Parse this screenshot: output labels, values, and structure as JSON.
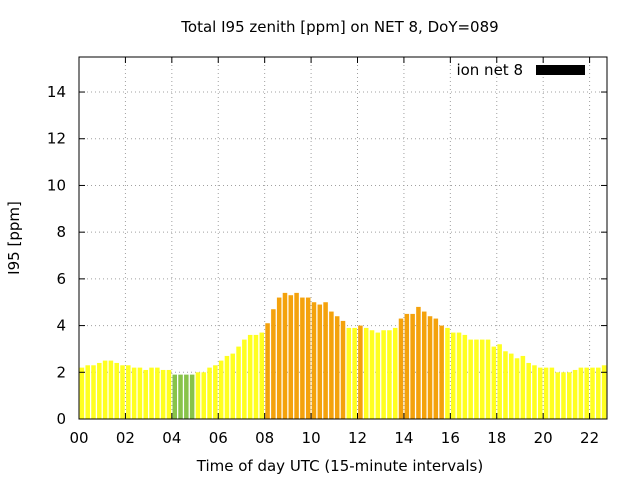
{
  "chart_data": {
    "type": "bar",
    "title": "Total I95 zenith [ppm] on NET 8, DoY=089",
    "xlabel": "Time of day UTC (15-minute intervals)",
    "ylabel": "I95 [ppm]",
    "xlim": [
      0,
      22.75
    ],
    "ylim": [
      0,
      15.5
    ],
    "x_ticks": [
      0,
      2,
      4,
      6,
      8,
      10,
      12,
      14,
      16,
      18,
      20,
      22
    ],
    "x_tick_labels": [
      "00",
      "02",
      "04",
      "06",
      "08",
      "10",
      "12",
      "14",
      "16",
      "18",
      "20",
      "22"
    ],
    "y_ticks": [
      0,
      2,
      4,
      6,
      8,
      10,
      12,
      14
    ],
    "y_tick_labels": [
      "0",
      "2",
      "4",
      "6",
      "8",
      "10",
      "12",
      "14"
    ],
    "grid": true,
    "legend": {
      "entry": "ion net 8",
      "placement": "top-right",
      "color": "#000000"
    },
    "bar_interval_hours": 0.25,
    "colors": {
      "green": "#88c34a",
      "yellow": "#ffff20",
      "orange": "#f4a20c"
    },
    "thresholds": {
      "green_below": 2.0,
      "orange_from": 4.0
    },
    "values": [
      2.2,
      2.3,
      2.3,
      2.4,
      2.5,
      2.5,
      2.4,
      2.3,
      2.3,
      2.2,
      2.2,
      2.1,
      2.2,
      2.2,
      2.1,
      2.1,
      1.9,
      1.9,
      1.9,
      1.9,
      2.0,
      2.0,
      2.2,
      2.3,
      2.5,
      2.7,
      2.8,
      3.1,
      3.4,
      3.6,
      3.6,
      3.7,
      4.1,
      4.7,
      5.2,
      5.4,
      5.3,
      5.4,
      5.2,
      5.2,
      5.0,
      4.9,
      5.0,
      4.6,
      4.4,
      4.2,
      3.9,
      3.9,
      4.0,
      3.9,
      3.8,
      3.7,
      3.8,
      3.8,
      3.9,
      4.3,
      4.5,
      4.5,
      4.8,
      4.6,
      4.4,
      4.3,
      4.0,
      3.9,
      3.7,
      3.7,
      3.6,
      3.4,
      3.4,
      3.4,
      3.4,
      3.1,
      3.2,
      2.9,
      2.8,
      2.6,
      2.7,
      2.4,
      2.3,
      2.2,
      2.2,
      2.2,
      2.0,
      2.0,
      2.0,
      2.1,
      2.2,
      2.2,
      2.2,
      2.2,
      2.3
    ]
  }
}
